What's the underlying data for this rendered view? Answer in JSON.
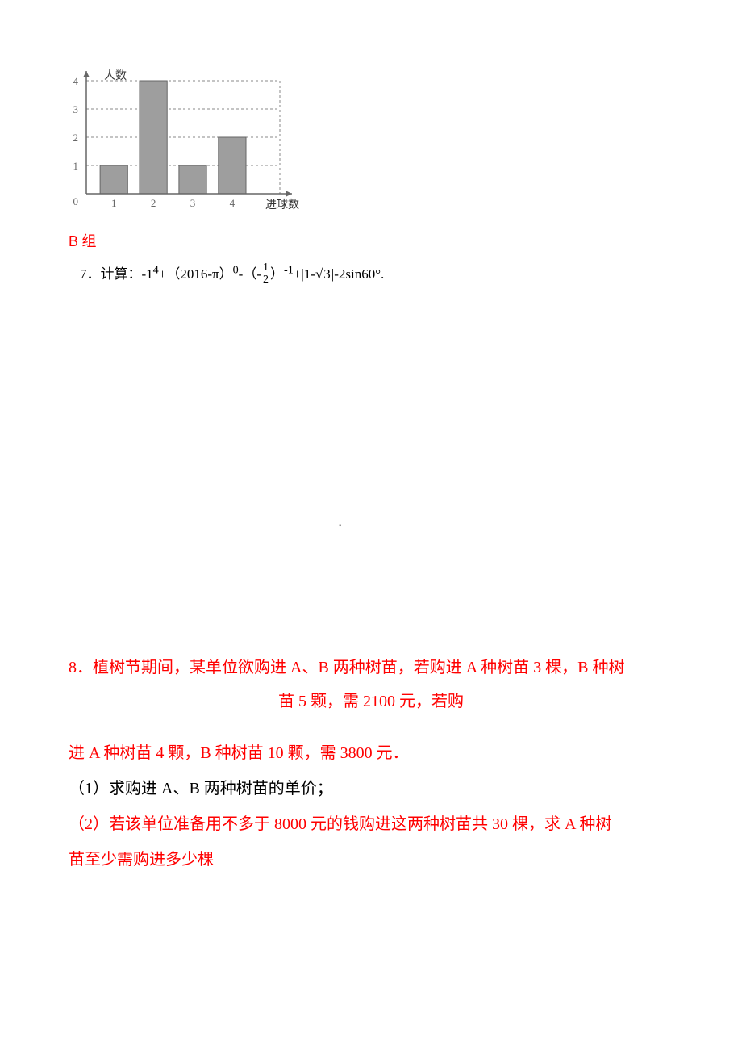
{
  "chart": {
    "type": "bar",
    "ylabel": "人数",
    "xlabel": "进球数",
    "categories": [
      "1",
      "2",
      "3",
      "4"
    ],
    "values": [
      1,
      4,
      1,
      2
    ],
    "ylim": [
      0,
      4
    ],
    "ytick_step": 1,
    "bar_color": "#9e9e9e",
    "bar_border_color": "#666666",
    "axis_color": "#666666",
    "grid_color": "#888888",
    "grid_dash": "3,3",
    "background_color": "#ffffff",
    "label_fontsize": 14,
    "tick_fontsize": 13,
    "bar_width_ratio": 0.7
  },
  "section_b": {
    "label_b": "B",
    "label_zu": " 组"
  },
  "q7": {
    "prefix": "7．计算：-1",
    "exp4": "4",
    "mid1": "+（2016-π）",
    "exp0": "0",
    "mid2": "-（-",
    "frac_num": "1",
    "frac_den": "2",
    "mid3": "）",
    "expneg1": "-1",
    "mid4": "+|1-",
    "sqrt_radicand": "3",
    "tail": "|-2sin60°."
  },
  "dot": "▪",
  "q8": {
    "line1": "8．植树节期间，某单位欲购进 A、B 两种树苗，若购进 A 种树苗 3 棵，B 种树",
    "line1b": "苗 5 颗，需 2100 元，若购",
    "line2": "进 A 种树苗 4 颗，B 种树苗 10 颗，需 3800 元．",
    "part1": "（1）求购进 A、B 两种树苗的单价；",
    "part2a": "（2）若该单位准备用不多于 8000 元的钱购进这两种树苗共 30 棵，求 A 种树",
    "part2b": "苗至少需购进多少棵"
  }
}
